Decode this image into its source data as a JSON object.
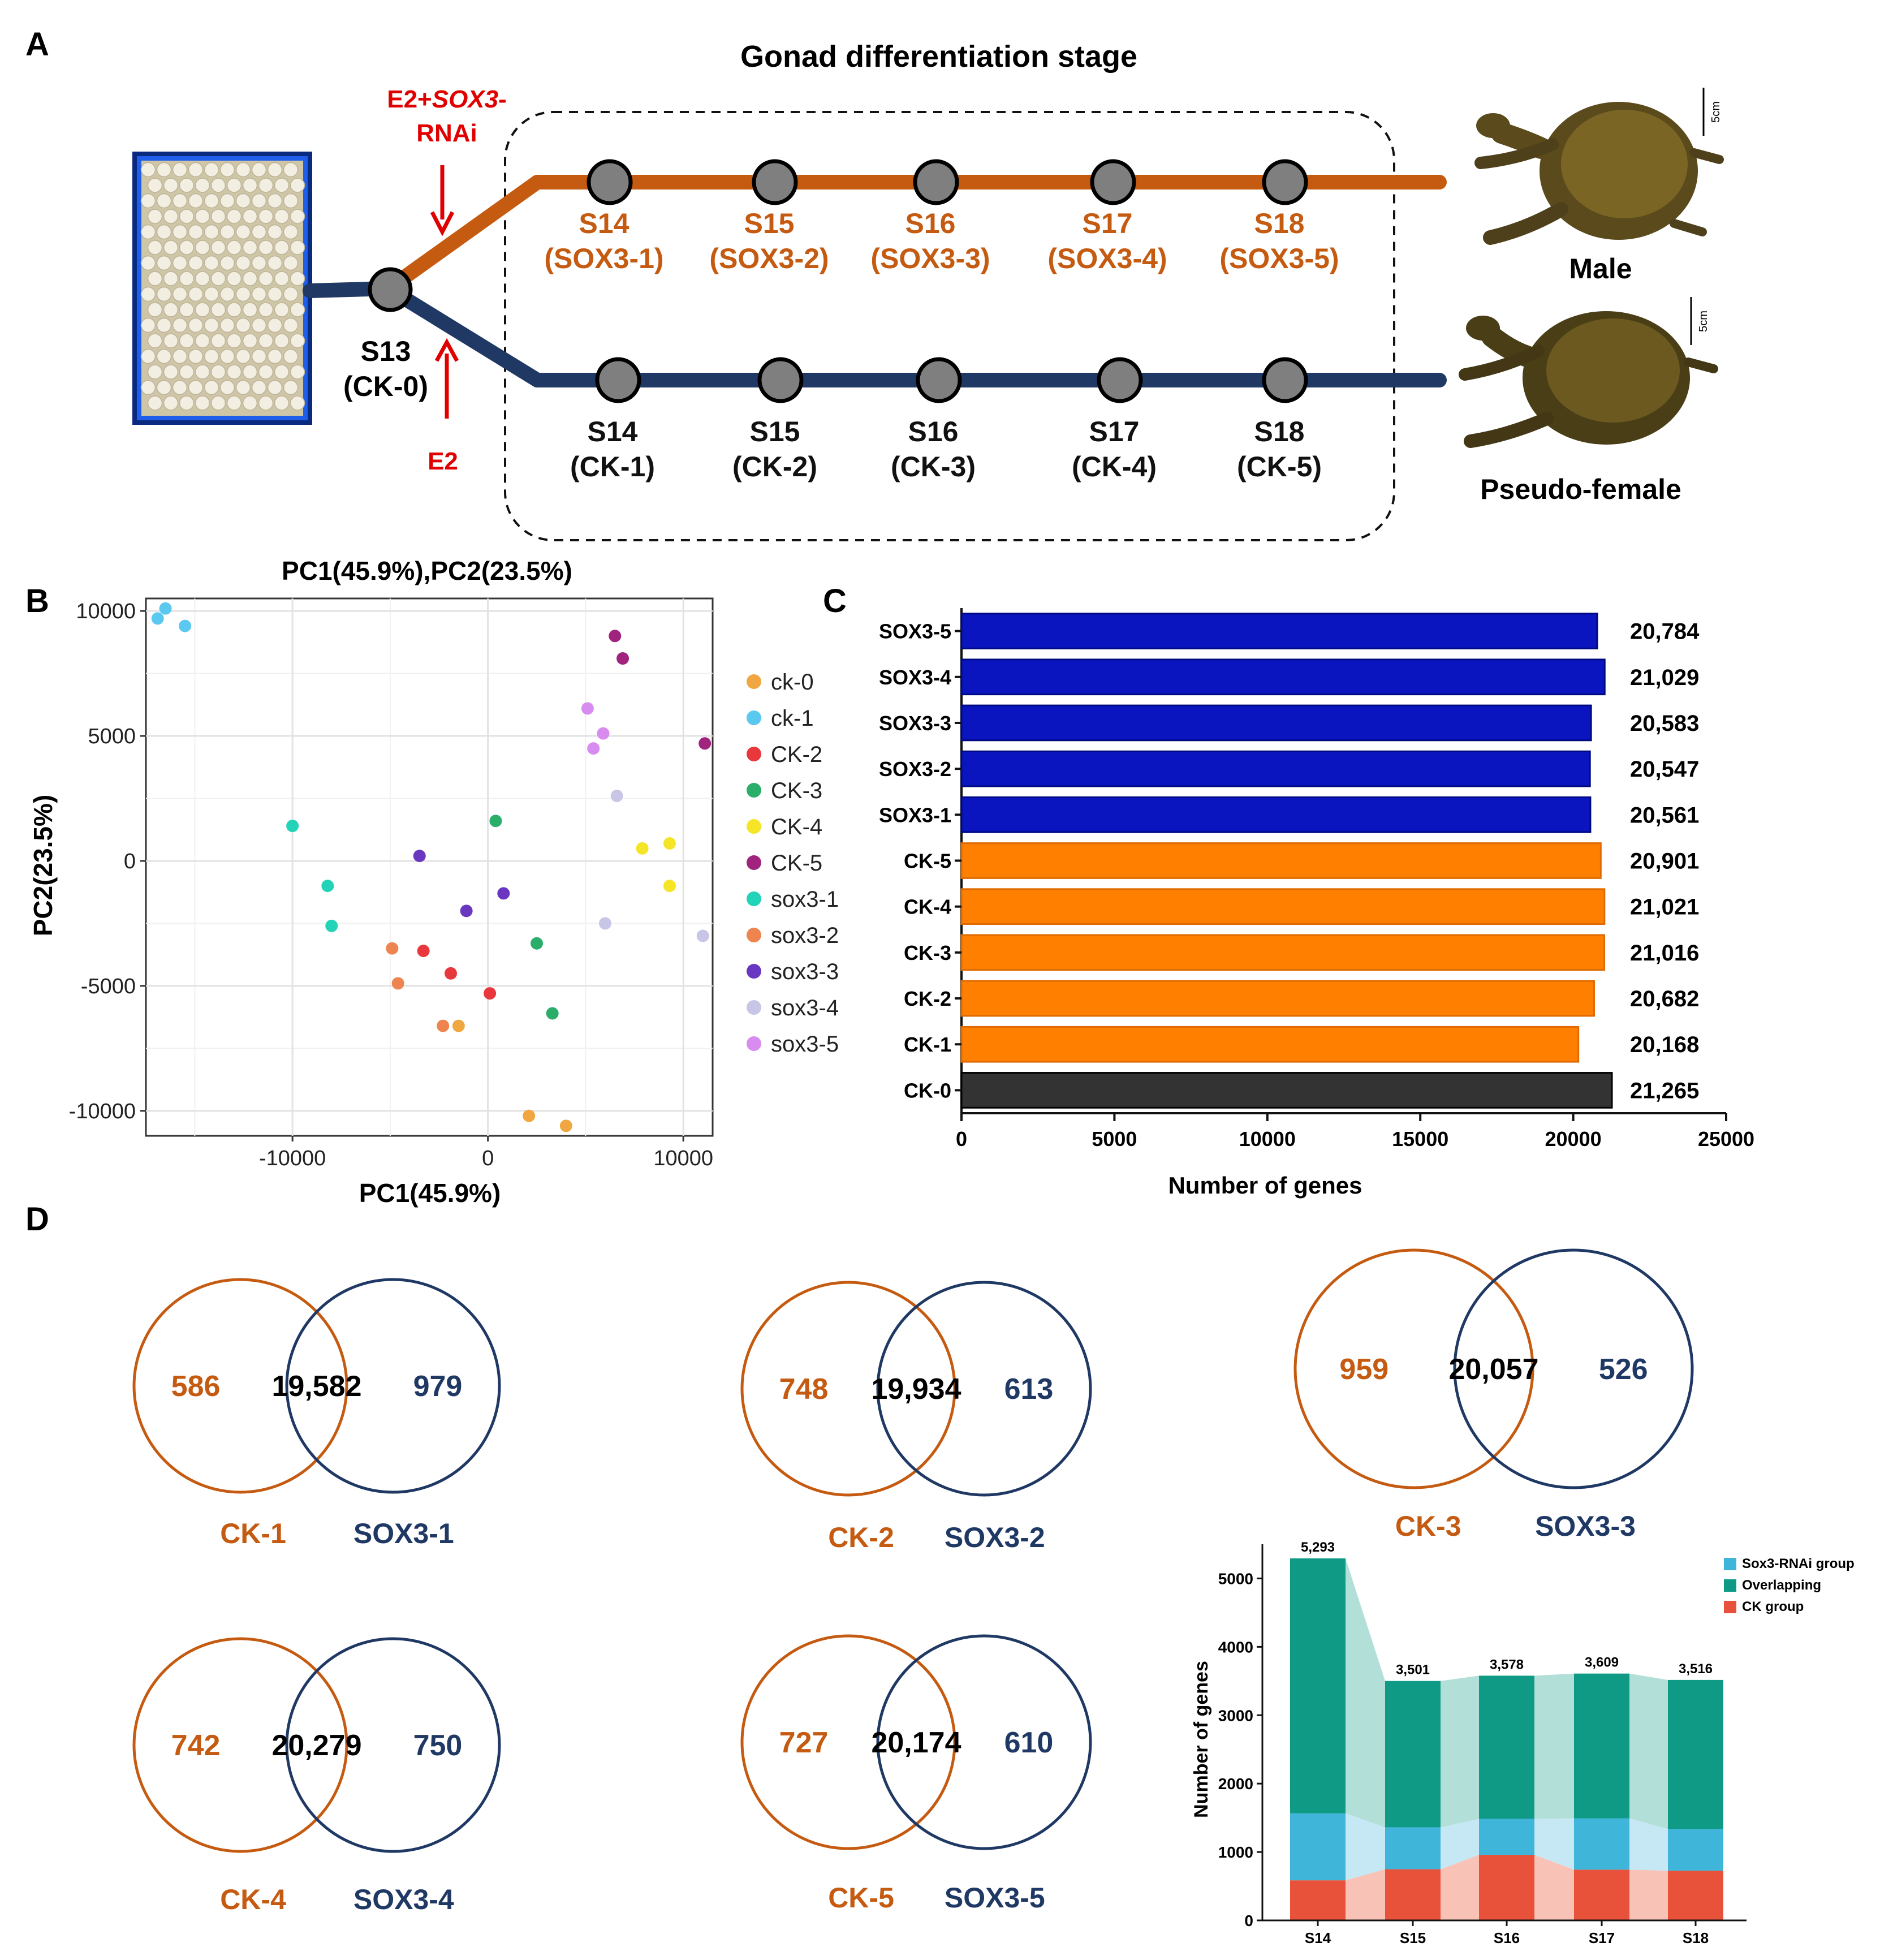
{
  "panel_labels": {
    "a": "A",
    "b": "B",
    "c": "C",
    "d": "D"
  },
  "panelA": {
    "title": "Gonad differentiation stage",
    "treat_label_1": "E2+",
    "treat_label_gene": "SOX3",
    "treat_label_2": "-",
    "treat_label_3": "RNAi",
    "e2_label": "E2",
    "s13_stage": "S13",
    "s13_group": "(CK-0)",
    "male_label": "Male",
    "female_label": "Pseudo-female",
    "scale_label": "5cm",
    "colors": {
      "orange": "#C55A11",
      "navy": "#1F3864",
      "red": "#E00000",
      "node": "#7F7F7F"
    },
    "top_nodes": [
      {
        "stage": "S14",
        "group": "(SOX3-1)"
      },
      {
        "stage": "S15",
        "group": "(SOX3-2)"
      },
      {
        "stage": "S16",
        "group": "(SOX3-3)"
      },
      {
        "stage": "S17",
        "group": "(SOX3-4)"
      },
      {
        "stage": "S18",
        "group": "(SOX3-5)"
      }
    ],
    "bottom_nodes": [
      {
        "stage": "S14",
        "group": "(CK-1)"
      },
      {
        "stage": "S15",
        "group": "(CK-2)"
      },
      {
        "stage": "S16",
        "group": "(CK-3)"
      },
      {
        "stage": "S17",
        "group": "(CK-4)"
      },
      {
        "stage": "S18",
        "group": "(CK-5)"
      }
    ]
  },
  "chart_data": [
    {
      "type": "scatter",
      "title": "PC1(45.9%),PC2(23.5%)",
      "xlabel": "PC1(45.9%)",
      "ylabel": "PC2(23.5%)",
      "xlim": [
        -17500,
        11500
      ],
      "ylim": [
        -11000,
        10500
      ],
      "xticks": [
        -10000,
        0,
        10000
      ],
      "yticks": [
        -10000,
        -5000,
        0,
        5000,
        10000
      ],
      "xtick_labels": [
        "-10000",
        "0",
        "10000"
      ],
      "ytick_labels": [
        "-10000",
        "-5000",
        "0",
        "5000",
        "10000"
      ],
      "legend_position": "right",
      "series": [
        {
          "name": "ck-0",
          "color": "#F0A742",
          "points": [
            [
              2100,
              -10200
            ],
            [
              4000,
              -10600
            ],
            [
              -1500,
              -6600
            ]
          ]
        },
        {
          "name": "ck-1",
          "color": "#5BC8F0",
          "points": [
            [
              -16900,
              9700
            ],
            [
              -16500,
              10100
            ],
            [
              -15500,
              9400
            ]
          ]
        },
        {
          "name": "CK-2",
          "color": "#E8383D",
          "points": [
            [
              -3300,
              -3600
            ],
            [
              -1900,
              -4500
            ],
            [
              100,
              -5300
            ]
          ]
        },
        {
          "name": "CK-3",
          "color": "#2BAE6A",
          "points": [
            [
              400,
              1600
            ],
            [
              2500,
              -3300
            ],
            [
              3300,
              -6100
            ]
          ]
        },
        {
          "name": "CK-4",
          "color": "#F5E526",
          "points": [
            [
              7900,
              500
            ],
            [
              9300,
              700
            ],
            [
              9300,
              -1000
            ]
          ]
        },
        {
          "name": "CK-5",
          "color": "#A0237E",
          "points": [
            [
              6500,
              9000
            ],
            [
              6900,
              8100
            ],
            [
              11100,
              4700
            ]
          ]
        },
        {
          "name": "sox3-1",
          "color": "#22D3B8",
          "points": [
            [
              -10000,
              1400
            ],
            [
              -8200,
              -1000
            ],
            [
              -8000,
              -2600
            ]
          ]
        },
        {
          "name": "sox3-2",
          "color": "#EE8550",
          "points": [
            [
              -4900,
              -3500
            ],
            [
              -4600,
              -4900
            ],
            [
              -2300,
              -6600
            ]
          ]
        },
        {
          "name": "sox3-3",
          "color": "#6A38C0",
          "points": [
            [
              -3500,
              200
            ],
            [
              -1100,
              -2000
            ],
            [
              800,
              -1300
            ]
          ]
        },
        {
          "name": "sox3-4",
          "color": "#C8C6E6",
          "points": [
            [
              6600,
              2600
            ],
            [
              6000,
              -2500
            ],
            [
              11000,
              -3000
            ]
          ]
        },
        {
          "name": "sox3-5",
          "color": "#D88CF0",
          "points": [
            [
              5100,
              6100
            ],
            [
              5900,
              5100
            ],
            [
              5400,
              4500
            ]
          ]
        }
      ]
    },
    {
      "type": "bar",
      "orientation": "horizontal",
      "xlabel": "Number of genes",
      "xlim": [
        0,
        25000
      ],
      "xticks": [
        0,
        5000,
        10000,
        15000,
        20000,
        25000
      ],
      "xtick_labels": [
        "0",
        "5000",
        "10000",
        "15000",
        "20000",
        "25000"
      ],
      "categories": [
        "SOX3-5",
        "SOX3-4",
        "SOX3-3",
        "SOX3-2",
        "SOX3-1",
        "CK-5",
        "CK-4",
        "CK-3",
        "CK-2",
        "CK-1",
        "CK-0"
      ],
      "values": [
        20784,
        21029,
        20583,
        20547,
        20561,
        20901,
        21021,
        21016,
        20682,
        20168,
        21265
      ],
      "value_labels": [
        "20,784",
        "21,029",
        "20,583",
        "20,547",
        "20,561",
        "20,901",
        "21,021",
        "21,016",
        "20,682",
        "20,168",
        "21,265"
      ],
      "colors": [
        "#0A15C0",
        "#0A15C0",
        "#0A15C0",
        "#0A15C0",
        "#0A15C0",
        "#FF7F00",
        "#FF7F00",
        "#FF7F00",
        "#FF7F00",
        "#FF7F00",
        "#333333"
      ]
    },
    {
      "type": "venn",
      "colors": {
        "ck": "#C55A11",
        "sox": "#1F3864"
      },
      "sets": [
        {
          "left_label": "CK-1",
          "right_label": "SOX3-1",
          "left_only": "586",
          "overlap": "19,582",
          "right_only": "979"
        },
        {
          "left_label": "CK-2",
          "right_label": "SOX3-2",
          "left_only": "748",
          "overlap": "19,934",
          "right_only": "613"
        },
        {
          "left_label": "CK-3",
          "right_label": "SOX3-3",
          "left_only": "959",
          "overlap": "20,057",
          "right_only": "526"
        },
        {
          "left_label": "CK-4",
          "right_label": "SOX3-4",
          "left_only": "742",
          "overlap": "20,279",
          "right_only": "750"
        },
        {
          "left_label": "CK-5",
          "right_label": "SOX3-5",
          "left_only": "727",
          "overlap": "20,174",
          "right_only": "610"
        }
      ]
    },
    {
      "type": "bar",
      "stacked": true,
      "ylabel": "Number of genes",
      "ylim": [
        0,
        5500
      ],
      "yticks": [
        0,
        1000,
        2000,
        3000,
        4000,
        5000
      ],
      "ytick_labels": [
        "0",
        "1000",
        "2000",
        "3000",
        "4000",
        "5000"
      ],
      "categories": [
        "S14",
        "S15",
        "S16",
        "S17",
        "S18"
      ],
      "totals": [
        5293,
        3501,
        3578,
        3609,
        3516
      ],
      "total_labels": [
        "5,293",
        "3,501",
        "3,578",
        "3,609",
        "3,516"
      ],
      "legend_position": "top-right",
      "series": [
        {
          "name": "CK group",
          "color": "#E8513A",
          "values": [
            586,
            748,
            959,
            742,
            727
          ]
        },
        {
          "name": "Sox3-RNAi group",
          "color": "#3FB5DA",
          "values": [
            979,
            613,
            526,
            750,
            610
          ]
        },
        {
          "name": "Overlapping",
          "color": "#0E9A85",
          "values": [
            3728,
            2140,
            2093,
            2117,
            2179
          ]
        }
      ]
    }
  ]
}
